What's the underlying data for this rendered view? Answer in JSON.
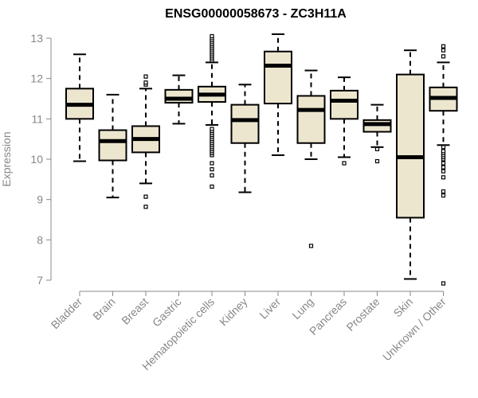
{
  "chart_data": {
    "type": "boxplot",
    "title": "ENSG00000058673 - ZC3H11A",
    "xlabel": "",
    "ylabel": "Expression",
    "ylim": [
      6.9,
      13.1
    ],
    "yticks": [
      7,
      8,
      9,
      10,
      11,
      12,
      13
    ],
    "box_fill": "#ede6cf",
    "categories": [
      "Bladder",
      "Brain",
      "Breast",
      "Gastric",
      "Hematopoietic cells",
      "Kidney",
      "Liver",
      "Lung",
      "Pancreas",
      "Prostate",
      "Skin",
      "Unknown / Other"
    ],
    "series": [
      {
        "name": "Bladder",
        "q1": 11.0,
        "median": 11.35,
        "q3": 11.75,
        "whisker_low": 9.95,
        "whisker_high": 12.6,
        "outliers": []
      },
      {
        "name": "Brain",
        "q1": 9.97,
        "median": 10.45,
        "q3": 10.72,
        "whisker_low": 9.05,
        "whisker_high": 11.6,
        "outliers": []
      },
      {
        "name": "Breast",
        "q1": 10.17,
        "median": 10.5,
        "q3": 10.82,
        "whisker_low": 9.4,
        "whisker_high": 11.75,
        "outliers": [
          8.82,
          9.07,
          11.85,
          11.9,
          12.05
        ]
      },
      {
        "name": "Gastric",
        "q1": 11.4,
        "median": 11.5,
        "q3": 11.72,
        "whisker_low": 10.88,
        "whisker_high": 12.08,
        "outliers": []
      },
      {
        "name": "Hematopoietic cells",
        "q1": 11.42,
        "median": 11.6,
        "q3": 11.8,
        "whisker_low": 10.85,
        "whisker_high": 12.4,
        "outliers": [
          9.32,
          9.6,
          9.75,
          9.9,
          10.1,
          10.15,
          10.2,
          10.25,
          10.3,
          10.35,
          10.4,
          10.45,
          10.5,
          10.55,
          10.6,
          10.65,
          10.7,
          10.75,
          12.45,
          12.5,
          12.55,
          12.6,
          12.65,
          12.7,
          12.75,
          12.8,
          12.85,
          12.9,
          12.95,
          13.0,
          13.05
        ]
      },
      {
        "name": "Kidney",
        "q1": 10.4,
        "median": 10.97,
        "q3": 11.35,
        "whisker_low": 9.18,
        "whisker_high": 11.85,
        "outliers": []
      },
      {
        "name": "Liver",
        "q1": 11.38,
        "median": 12.32,
        "q3": 12.67,
        "whisker_low": 10.1,
        "whisker_high": 13.1,
        "outliers": []
      },
      {
        "name": "Lung",
        "q1": 10.4,
        "median": 11.22,
        "q3": 11.57,
        "whisker_low": 10.0,
        "whisker_high": 12.2,
        "outliers": [
          7.85
        ]
      },
      {
        "name": "Pancreas",
        "q1": 11.0,
        "median": 11.45,
        "q3": 11.7,
        "whisker_low": 10.05,
        "whisker_high": 12.03,
        "outliers": [
          9.9
        ]
      },
      {
        "name": "Prostate",
        "q1": 10.68,
        "median": 10.87,
        "q3": 10.97,
        "whisker_low": 10.3,
        "whisker_high": 11.35,
        "outliers": [
          9.95,
          10.25
        ]
      },
      {
        "name": "Skin",
        "q1": 8.55,
        "median": 10.05,
        "q3": 12.1,
        "whisker_low": 7.03,
        "whisker_high": 12.7,
        "outliers": []
      },
      {
        "name": "Unknown / Other",
        "q1": 11.2,
        "median": 11.52,
        "q3": 11.78,
        "whisker_low": 10.35,
        "whisker_high": 12.4,
        "outliers": [
          6.92,
          9.1,
          9.2,
          9.55,
          9.7,
          9.8,
          9.9,
          10.0,
          10.05,
          10.1,
          10.15,
          10.2,
          10.3,
          12.55,
          12.7,
          12.8
        ]
      }
    ]
  }
}
